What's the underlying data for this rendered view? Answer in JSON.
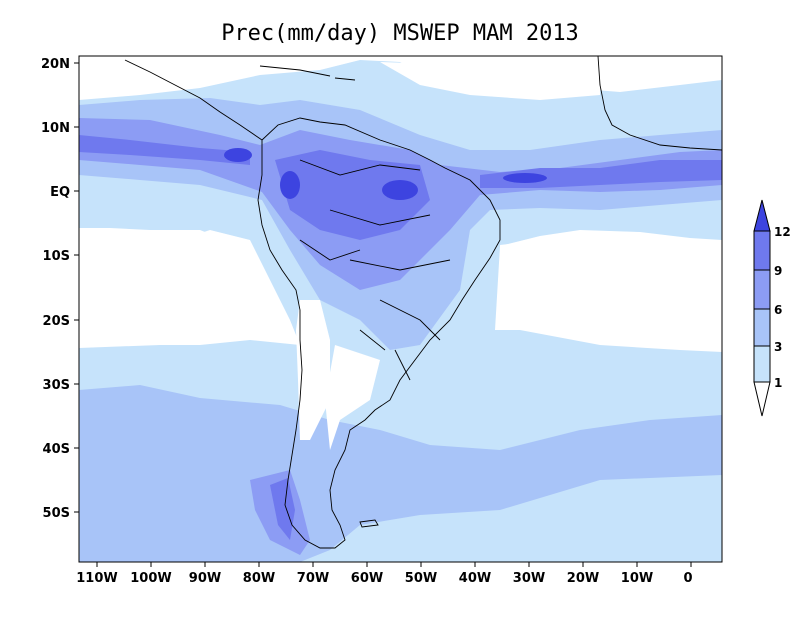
{
  "title": "Prec(mm/day) MSWEP MAM 2013",
  "colors": {
    "ocean_bg": "#ffffff",
    "level_1": "#c6e3fb",
    "level_3": "#a8c4f8",
    "level_6": "#8c9cf4",
    "level_9": "#6f79ee",
    "level_12": "#3d44e0",
    "outline": "#000000"
  },
  "axes": {
    "lon_ticks": [
      "110W",
      "100W",
      "90W",
      "80W",
      "70W",
      "60W",
      "50W",
      "40W",
      "30W",
      "20W",
      "10W",
      "0"
    ],
    "lat_ticks": [
      "20N",
      "10N",
      "EQ",
      "10S",
      "20S",
      "30S",
      "40S",
      "50S"
    ]
  },
  "colorbar": {
    "labels": [
      "1",
      "3",
      "6",
      "9",
      "12"
    ]
  }
}
